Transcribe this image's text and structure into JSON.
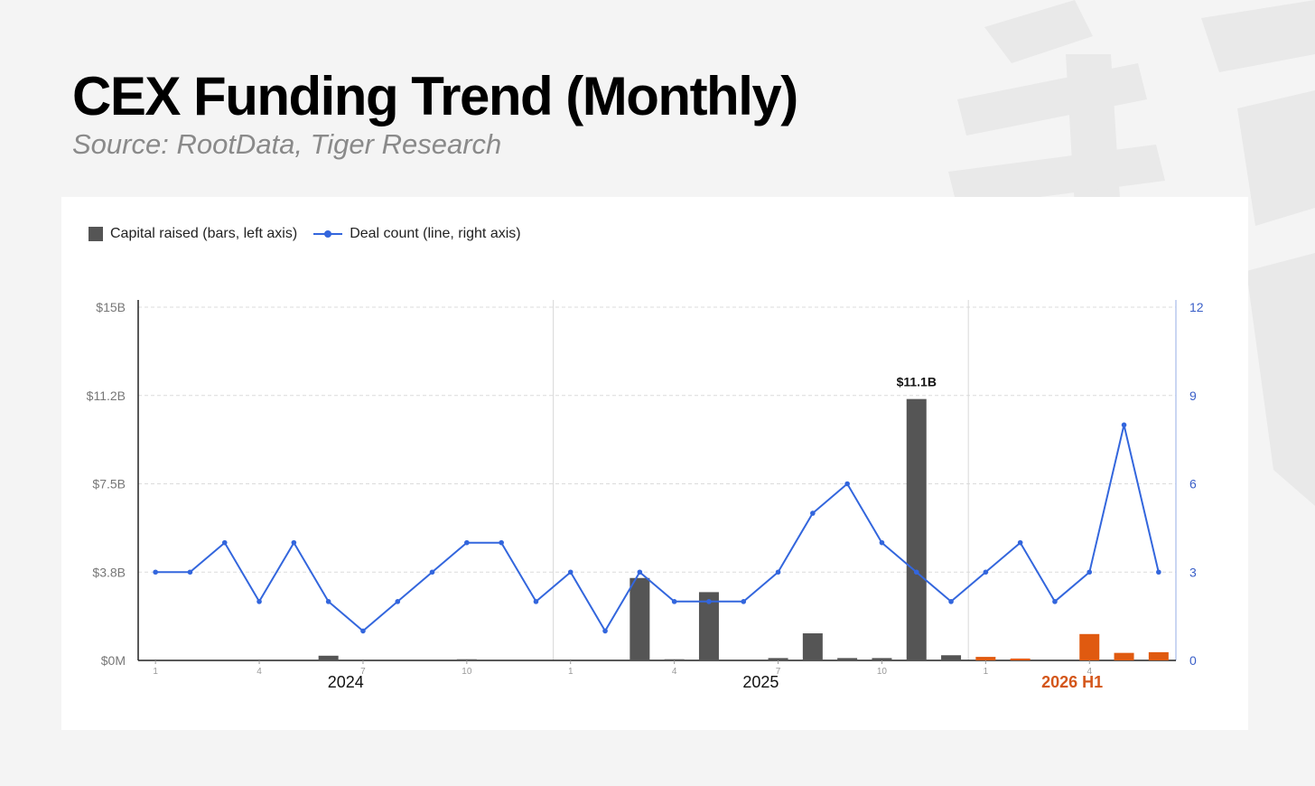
{
  "title": "CEX Funding Trend (Monthly)",
  "subtitle": "Source: RootData, Tiger Research",
  "colors": {
    "bar": "#555555",
    "bar_2026": "#e05a10",
    "line": "#3366dd",
    "year_2026_label": "#d4561a"
  },
  "chart_data": {
    "type": "bar",
    "legend": {
      "bars": "Capital raised (bars, left axis)",
      "line": "Deal count (line, right axis)",
      "placement": "top-left"
    },
    "months": [
      1,
      2,
      3,
      4,
      5,
      6,
      7,
      8,
      9,
      10,
      11,
      12,
      1,
      2,
      3,
      4,
      5,
      6,
      7,
      8,
      9,
      10,
      11,
      12,
      1,
      2,
      3,
      4,
      5,
      6
    ],
    "x_tick_labels": [
      "1",
      "4",
      "7",
      "10",
      "1",
      "4",
      "7",
      "10",
      "1",
      "4"
    ],
    "year_labels": [
      "2024",
      "2025",
      "2026 H1"
    ],
    "left_axis": {
      "ticks": [
        "$0M",
        "$3.8B",
        "$7.5B",
        "$11.2B",
        "$15B"
      ],
      "ylim": [
        0,
        15
      ]
    },
    "right_axis": {
      "ticks": [
        "0",
        "3",
        "6",
        "9",
        "12"
      ],
      "ylim": [
        0,
        12
      ]
    },
    "series": [
      {
        "name": "Capital raised (bars, left axis)",
        "unit": "$B",
        "values": [
          0,
          0,
          0,
          0,
          0,
          0.2,
          0,
          0,
          0,
          0.05,
          0,
          0,
          0,
          0,
          3.5,
          0.05,
          2.9,
          0,
          0.1,
          1.15,
          0.1,
          0.1,
          11.1,
          0.22,
          0.15,
          0.08,
          0,
          1.12,
          0.32,
          0.35
        ]
      },
      {
        "name": "Deal count (line, right axis)",
        "values": [
          3,
          3,
          4,
          2,
          4,
          2,
          1,
          2,
          3,
          4,
          4,
          2,
          3,
          1,
          3,
          2,
          2,
          2,
          3,
          5,
          6,
          4,
          3,
          2,
          3,
          4,
          2,
          3,
          8,
          3
        ]
      }
    ],
    "annotations": [
      {
        "index": 22,
        "text": "$11.1B"
      }
    ],
    "grid": true
  }
}
